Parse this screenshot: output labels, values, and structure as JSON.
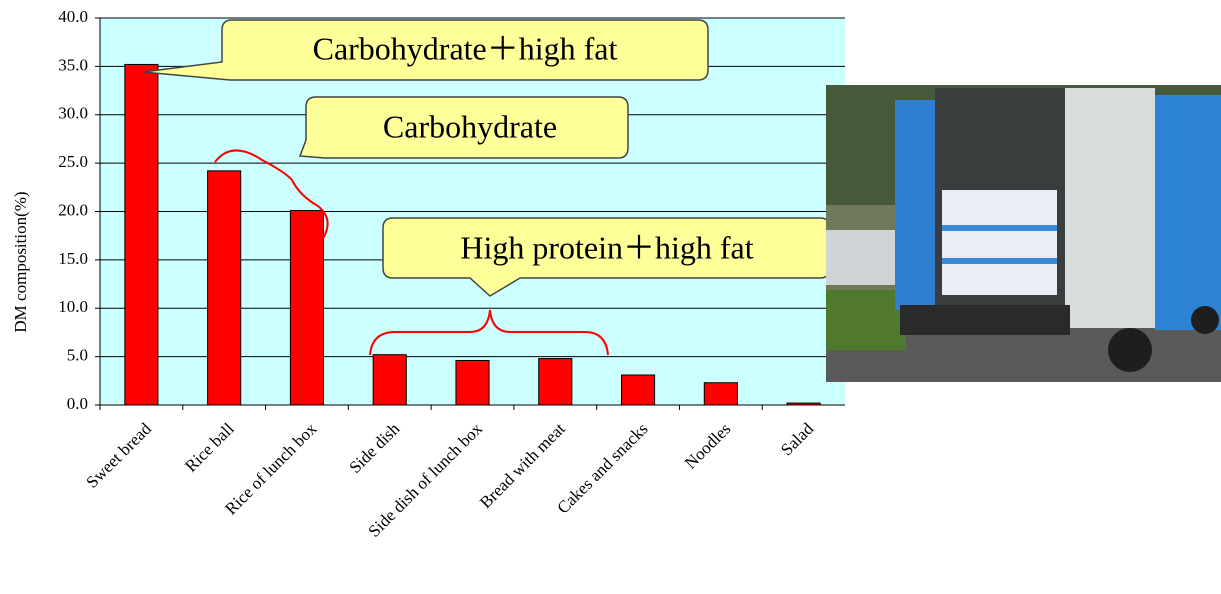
{
  "chart_data": {
    "type": "bar",
    "y_label": "DM composition(%)",
    "categories": [
      "Sweet bread",
      "Rice ball",
      "Rice of lunch box",
      "Side dish",
      "Side dish of lunch box",
      "Bread with meat",
      "Cakes and snacks",
      "Noodles",
      "Salad"
    ],
    "values": [
      35.2,
      24.2,
      20.1,
      5.2,
      4.6,
      4.8,
      3.1,
      2.3,
      0.2
    ],
    "color": "#ff0000",
    "ylim": [
      0,
      40
    ],
    "yticks": [
      {
        "value": 0,
        "label": "0.0"
      },
      {
        "value": 5,
        "label": "5.0"
      },
      {
        "value": 10,
        "label": "10.0"
      },
      {
        "value": 15,
        "label": "15.0"
      },
      {
        "value": 20,
        "label": "20.0"
      },
      {
        "value": 25,
        "label": "25.0"
      },
      {
        "value": 30,
        "label": "30.0"
      },
      {
        "value": 35,
        "label": "35.0"
      },
      {
        "value": 40,
        "label": "40.0"
      }
    ],
    "grid": true,
    "annotations": [
      "Carbohydrate＋high fat",
      "Carbohydrate",
      "High protein＋high fat"
    ]
  }
}
